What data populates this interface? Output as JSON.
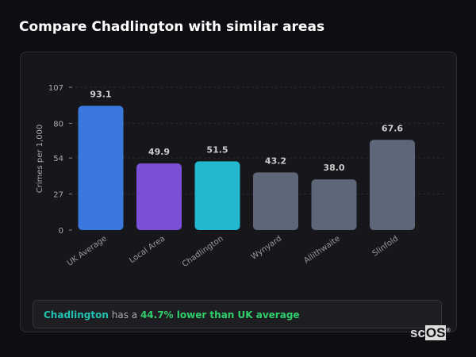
{
  "title": "Compare Chadlington with similar areas",
  "chart_data": {
    "type": "bar",
    "categories": [
      "UK Average",
      "Local Area",
      "Chadlington",
      "Wynyard",
      "Allithwaite",
      "Slinfold"
    ],
    "values": [
      93.1,
      49.9,
      51.5,
      43.2,
      38.0,
      67.6
    ],
    "value_labels": [
      "93.1",
      "49.9",
      "51.5",
      "43.2",
      "38.0",
      "67.6"
    ],
    "colors": [
      "#3a78de",
      "#7b50d6",
      "#22b8d0",
      "#5d6779",
      "#5d6779",
      "#5d6779"
    ],
    "ylabel": "Crimes per 1,000",
    "yticks": [
      0,
      27,
      54,
      80,
      107
    ],
    "ylim": [
      0,
      107
    ],
    "grid": true
  },
  "summary": {
    "area": "Chadlington",
    "middle": " has a ",
    "comparison": "44.7% lower than UK average"
  },
  "logo": {
    "text_a": "sc",
    "text_b": "OS",
    "mark": "®"
  }
}
